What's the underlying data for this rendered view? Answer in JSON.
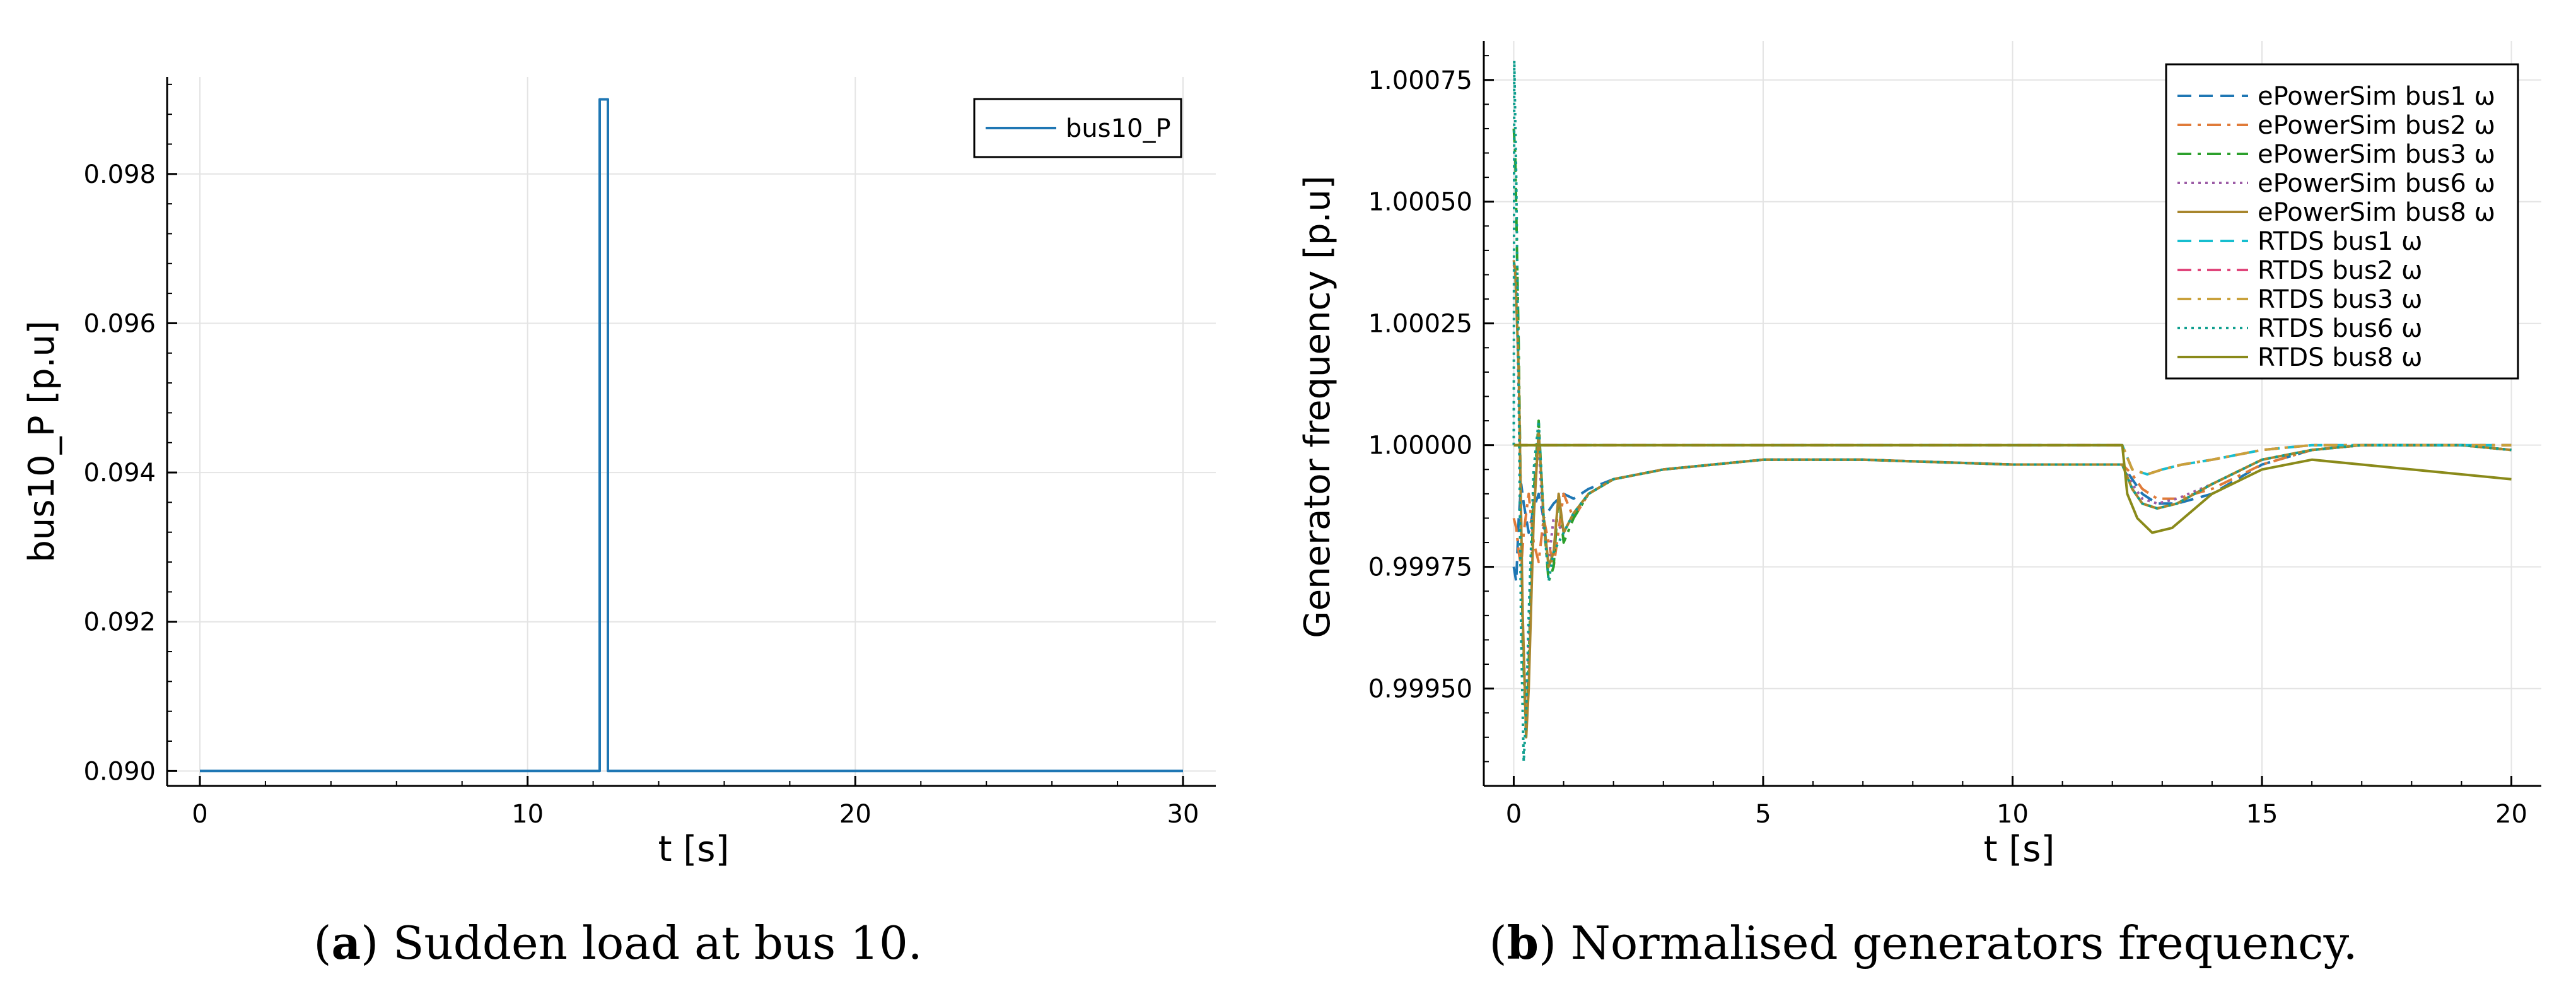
{
  "chart_data": [
    {
      "type": "line",
      "caption_letter": "a",
      "caption_text": "Sudden load at bus 10.",
      "xlabel": "t [s]",
      "ylabel": "bus10_P [p.u]",
      "xlim": [
        -1.0,
        31.0
      ],
      "ylim": [
        0.0898,
        0.0993
      ],
      "xticks": [
        0,
        10,
        20,
        30
      ],
      "xtick_labels": [
        "0",
        "10",
        "20",
        "30"
      ],
      "yticks": [
        0.09,
        0.092,
        0.094,
        0.096,
        0.098
      ],
      "ytick_labels": [
        "0.090",
        "0.092",
        "0.094",
        "0.096",
        "0.098"
      ],
      "grid": true,
      "legend_position": "top-right",
      "series": [
        {
          "name": "bus10_P",
          "color": "#1f77b4",
          "dash": "solid",
          "x": [
            0,
            12.2,
            12.2,
            12.45,
            12.45,
            30
          ],
          "y": [
            0.09,
            0.09,
            0.099,
            0.099,
            0.09,
            0.09
          ]
        }
      ]
    },
    {
      "type": "line",
      "caption_letter": "b",
      "caption_text": "Normalised generators frequency.",
      "xlabel": "t [s]",
      "ylabel": "Generator frequency [p.u]",
      "xlim": [
        -0.6,
        20.6
      ],
      "ylim": [
        0.9993,
        1.00083
      ],
      "xticks": [
        0,
        5,
        10,
        15,
        20
      ],
      "xtick_labels": [
        "0",
        "5",
        "10",
        "15",
        "20"
      ],
      "yticks": [
        0.9995,
        0.99975,
        1.0,
        1.00025,
        1.0005,
        1.00075
      ],
      "ytick_labels": [
        "0.99950",
        "0.99975",
        "1.00000",
        "1.00025",
        "1.00050",
        "1.00075"
      ],
      "grid": true,
      "legend_position": "top-right",
      "series": [
        {
          "name": "ePowerSim bus1 ω",
          "color": "#1f77b4",
          "dash": "dash",
          "x": [
            0,
            0.05,
            0.1,
            0.15,
            0.2,
            0.3,
            0.4,
            0.5,
            0.6,
            0.8,
            1.0,
            1.2,
            1.5,
            2,
            3,
            4,
            5,
            7,
            10,
            12.2,
            12.4,
            12.6,
            12.9,
            13.3,
            14,
            15,
            16,
            17,
            18,
            19,
            20
          ],
          "y": [
            0.99975,
            0.99972,
            0.99985,
            0.99992,
            0.99988,
            0.99982,
            0.99987,
            0.9999,
            0.99985,
            0.99988,
            0.9999,
            0.99989,
            0.99991,
            0.99993,
            0.99995,
            0.99996,
            0.99997,
            0.99997,
            0.99996,
            0.99996,
            0.99993,
            0.9999,
            0.99988,
            0.99988,
            0.9999,
            0.99996,
            0.99999,
            1.0,
            1.0,
            1.0,
            0.99999
          ]
        },
        {
          "name": "ePowerSim bus2 ω",
          "color": "#e07b39",
          "dash": "dashdot",
          "x": [
            0,
            0.05,
            0.1,
            0.15,
            0.2,
            0.3,
            0.4,
            0.5,
            0.6,
            0.8,
            1.0,
            1.2,
            1.5,
            2,
            3,
            4,
            5,
            7,
            10,
            12.2,
            12.4,
            12.6,
            12.9,
            13.3,
            14,
            15,
            16,
            17,
            18,
            19,
            20
          ],
          "y": [
            0.99985,
            0.99983,
            0.99978,
            0.99975,
            0.99982,
            0.9999,
            0.9998,
            0.99976,
            0.99985,
            0.99975,
            0.9999,
            0.99985,
            0.9999,
            0.99993,
            0.99995,
            0.99996,
            0.99997,
            0.99997,
            0.99996,
            0.99996,
            0.99994,
            0.99991,
            0.99989,
            0.99989,
            0.99991,
            0.99996,
            0.99999,
            1.0,
            1.0,
            1.0,
            0.99999
          ]
        },
        {
          "name": "ePowerSim bus3 ω",
          "color": "#2ca02c",
          "dash": "dashdot",
          "x": [
            0,
            0.03,
            0.1,
            0.18,
            0.25,
            0.3,
            0.4,
            0.5,
            0.6,
            0.7,
            0.8,
            0.9,
            1.0,
            1.2,
            1.5,
            2,
            3,
            4,
            5,
            7,
            10,
            12.2,
            12.4,
            12.6,
            12.9,
            13.3,
            14,
            15,
            16,
            17,
            18,
            19,
            20
          ],
          "y": [
            1.00065,
            1.0006,
            1.0002,
            0.9996,
            0.9994,
            0.99955,
            0.9999,
            1.00005,
            0.99985,
            0.99972,
            0.99975,
            0.9999,
            0.9998,
            0.99985,
            0.9999,
            0.99993,
            0.99995,
            0.99996,
            0.99997,
            0.99997,
            0.99996,
            0.99996,
            0.99991,
            0.99988,
            0.99987,
            0.99988,
            0.99992,
            0.99997,
            0.99999,
            1.0,
            1.0,
            1.0,
            0.99999
          ]
        },
        {
          "name": "ePowerSim bus6 ω",
          "color": "#9c5ca6",
          "dash": "dot",
          "x": [
            0,
            0.05,
            0.1,
            0.18,
            0.25,
            0.3,
            0.4,
            0.5,
            0.6,
            0.7,
            0.8,
            1.0,
            1.2,
            1.5,
            2,
            3,
            4,
            5,
            7,
            10,
            12.2,
            12.4,
            12.6,
            12.9,
            13.3,
            14,
            15,
            16,
            17,
            18,
            19,
            20
          ],
          "y": [
            1.00037,
            1.00035,
            1.0001,
            0.99962,
            0.99945,
            0.9996,
            0.9999,
            1.0,
            0.99982,
            0.99976,
            0.99985,
            0.99982,
            0.99986,
            0.9999,
            0.99993,
            0.99995,
            0.99996,
            0.99997,
            0.99997,
            0.99996,
            0.99996,
            0.99992,
            0.99989,
            0.99988,
            0.99989,
            0.99992,
            0.99997,
            0.99999,
            1.0,
            1.0,
            1.0,
            0.99999
          ]
        },
        {
          "name": "ePowerSim bus8 ω",
          "color": "#a8862d",
          "dash": "solid",
          "x": [
            0,
            0.03,
            0.1,
            0.18,
            0.25,
            0.3,
            0.4,
            0.5,
            0.6,
            0.7,
            0.8,
            0.9,
            1.0,
            1.2,
            1.5,
            2,
            3,
            4,
            5,
            7,
            10,
            12.2,
            12.4,
            12.6,
            12.9,
            13.3,
            14,
            15,
            16,
            17,
            18,
            19,
            20
          ],
          "y": [
            1.00038,
            1.00036,
            1.00015,
            0.99965,
            0.9994,
            0.9995,
            0.99985,
            1.00003,
            0.99985,
            0.99975,
            0.99978,
            0.9999,
            0.99982,
            0.99986,
            0.9999,
            0.99993,
            0.99995,
            0.99996,
            0.99997,
            0.99997,
            0.99996,
            0.99996,
            0.99991,
            0.99988,
            0.99987,
            0.99988,
            0.99992,
            0.99997,
            0.99999,
            1.0,
            1.0,
            1.0,
            0.99999
          ]
        },
        {
          "name": "RTDS bus1 ω",
          "color": "#17becf",
          "dash": "dash",
          "x": [
            0,
            12.2,
            12.4,
            12.7,
            13.0,
            13.4,
            14,
            15,
            16,
            17,
            18,
            19,
            20
          ],
          "y": [
            1.0,
            1.0,
            0.99995,
            0.99994,
            0.99995,
            0.99996,
            0.99997,
            0.99999,
            1.0,
            1.0,
            1.0,
            1.0,
            1.0
          ]
        },
        {
          "name": "RTDS bus2 ω",
          "color": "#e0457b",
          "dash": "dashdot",
          "x": [
            0,
            12.2,
            12.4,
            12.7,
            13.0,
            13.4,
            14,
            15,
            16,
            17,
            18,
            19,
            20
          ],
          "y": [
            1.0,
            1.0,
            0.99995,
            0.99994,
            0.99995,
            0.99996,
            0.99997,
            0.99999,
            1.0,
            1.0,
            1.0,
            1.0,
            1.0
          ]
        },
        {
          "name": "RTDS bus3 ω",
          "color": "#c9a13b",
          "dash": "dashdot",
          "x": [
            0,
            12.2,
            12.4,
            12.7,
            13.0,
            13.4,
            14,
            15,
            16,
            17,
            18,
            19,
            20
          ],
          "y": [
            1.0,
            1.0,
            0.99995,
            0.99994,
            0.99995,
            0.99996,
            0.99997,
            0.99999,
            1.0,
            1.0,
            1.0,
            1.0,
            1.0
          ]
        },
        {
          "name": "RTDS bus6 ω",
          "color": "#0f9f8f",
          "dash": "dot",
          "x": [
            0,
            0.01,
            0.05,
            0.1,
            0.15,
            0.2,
            0.25,
            0.3,
            0.4,
            0.5,
            0.6,
            0.7,
            0.8,
            1.0,
            1.2,
            1.5,
            2,
            3,
            4,
            5,
            7,
            10,
            12.2,
            12.4,
            12.6,
            12.9,
            13.3,
            14,
            15,
            16,
            17,
            18,
            19,
            20
          ],
          "y": [
            1.0,
            1.00079,
            1.00055,
            1.0001,
            0.9996,
            0.99935,
            0.99945,
            0.99965,
            0.99995,
            1.00005,
            0.99985,
            0.99972,
            0.99978,
            0.99982,
            0.99986,
            0.9999,
            0.99993,
            0.99995,
            0.99996,
            0.99997,
            0.99997,
            0.99996,
            0.99996,
            0.99991,
            0.99988,
            0.99987,
            0.99988,
            0.99992,
            0.99997,
            0.99999,
            1.0,
            1.0,
            1.0,
            0.99999
          ]
        },
        {
          "name": "RTDS bus8 ω",
          "color": "#8a8a1a",
          "dash": "solid",
          "x": [
            0,
            12.2,
            12.3,
            12.5,
            12.8,
            13.2,
            14,
            15,
            16,
            17,
            18,
            19,
            20
          ],
          "y": [
            1.0,
            1.0,
            0.9999,
            0.99985,
            0.99982,
            0.99983,
            0.9999,
            0.99995,
            0.99997,
            0.99996,
            0.99995,
            0.99994,
            0.99993
          ]
        }
      ]
    }
  ]
}
